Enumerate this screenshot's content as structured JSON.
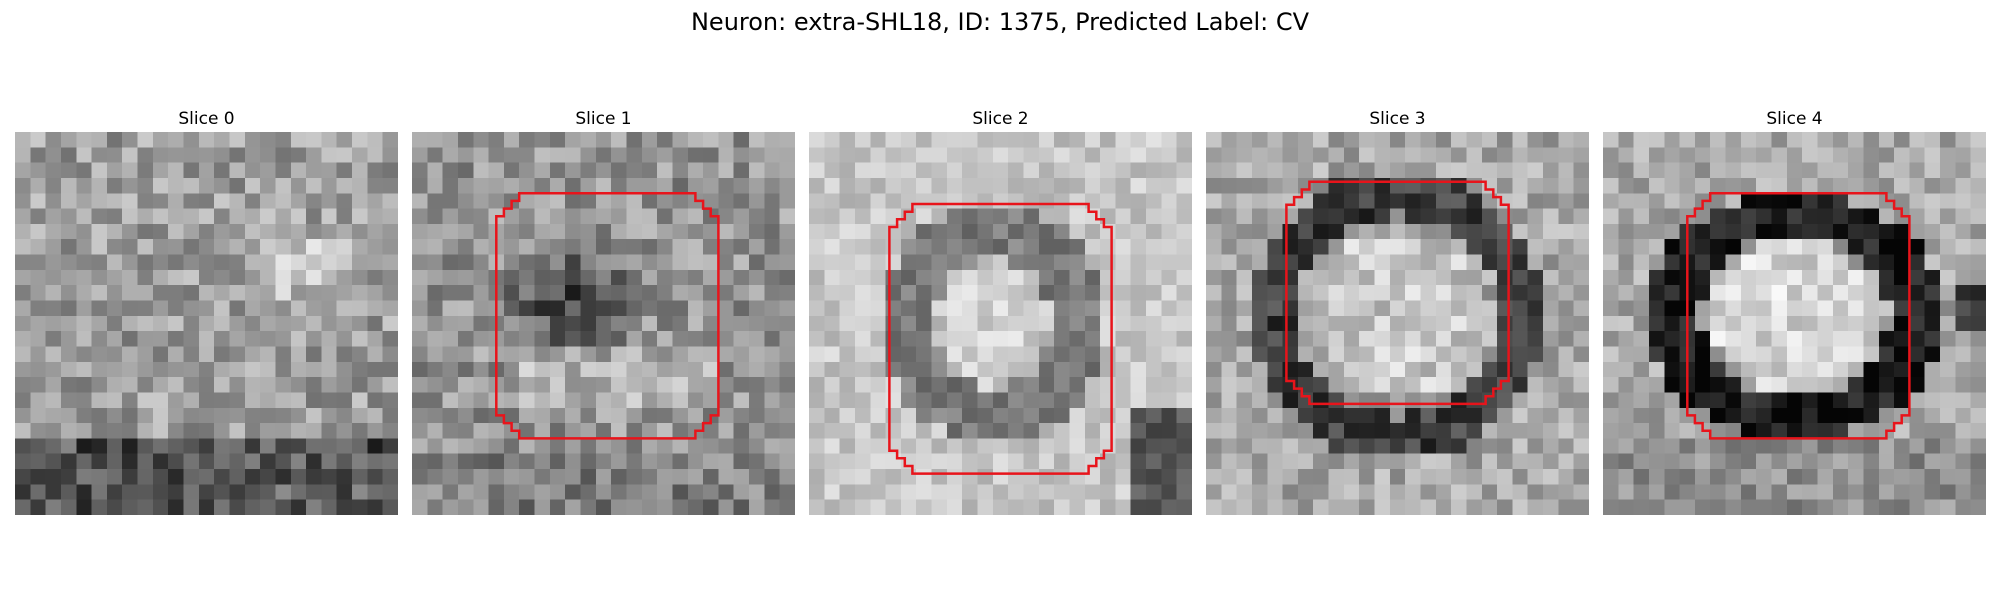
{
  "figure": {
    "title": "Neuron: extra-SHL18, ID: 1375, Predicted Label: CV"
  },
  "roi_color": "#e8141b",
  "panels": [
    {
      "title": "Slice 0",
      "pattern": "noise",
      "has_roi": false
    },
    {
      "title": "Slice 1",
      "pattern": "dark-blob",
      "has_roi": true
    },
    {
      "title": "Slice 2",
      "pattern": "light-ring",
      "has_roi": true
    },
    {
      "title": "Slice 3",
      "pattern": "dark-ring",
      "has_roi": true
    },
    {
      "title": "Slice 4",
      "pattern": "thick-ring",
      "has_roi": true
    }
  ]
}
